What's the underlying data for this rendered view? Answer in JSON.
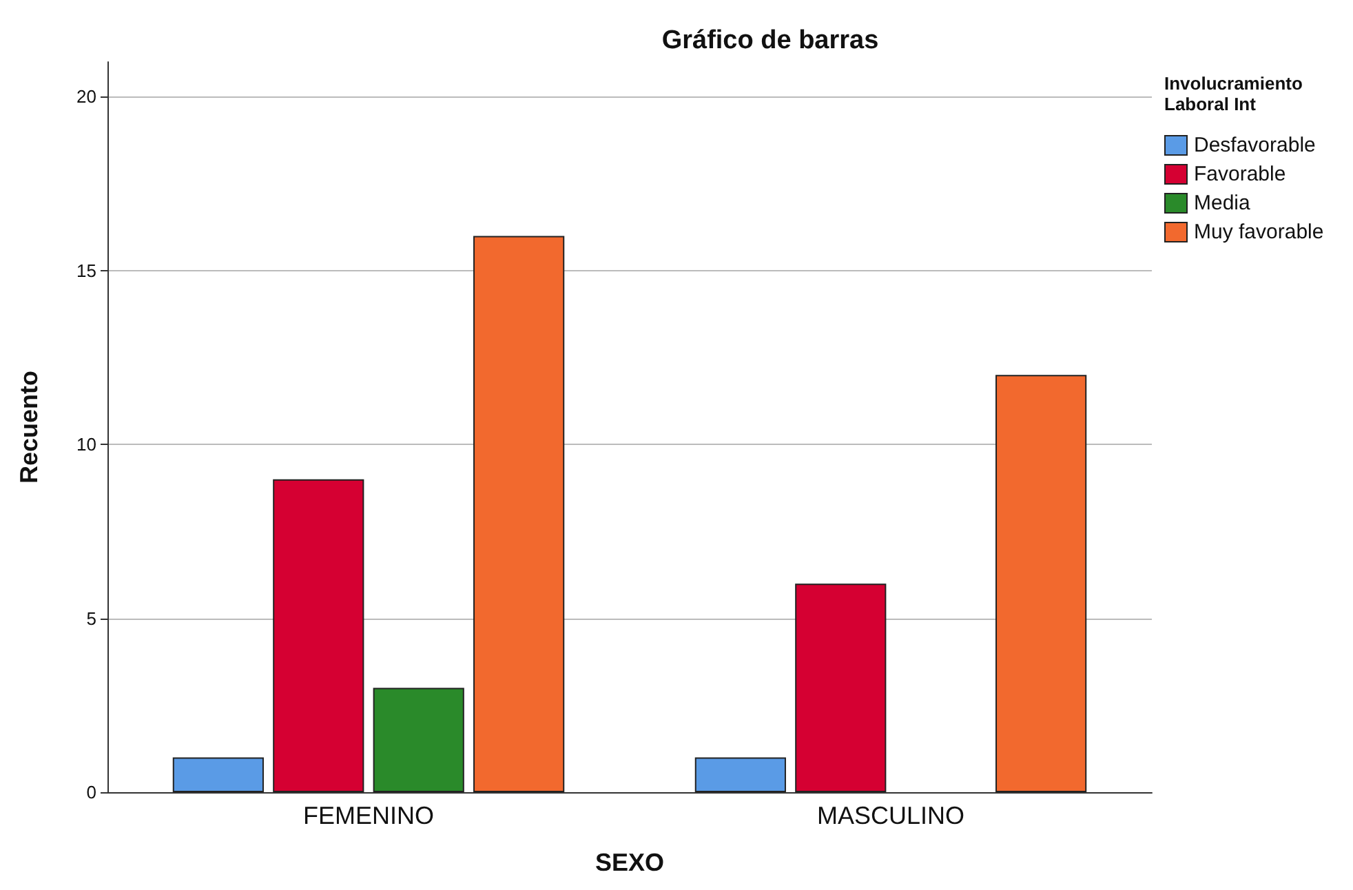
{
  "chart_data": {
    "type": "bar",
    "title": "Gráfico de barras",
    "xlabel": "SEXO",
    "ylabel": "Recuento",
    "legend_title": "Involucramiento Laboral Int",
    "categories": [
      "FEMENINO",
      "MASCULINO"
    ],
    "series": [
      {
        "name": "Desfavorable",
        "color": "#5a9be6",
        "values": [
          1,
          1
        ]
      },
      {
        "name": "Favorable",
        "color": "#d50032",
        "values": [
          9,
          6
        ]
      },
      {
        "name": "Media",
        "color": "#2a8a2a",
        "values": [
          3,
          null
        ]
      },
      {
        "name": "Muy favorable",
        "color": "#f2692e",
        "values": [
          16,
          12
        ]
      }
    ],
    "ylim": [
      0,
      21
    ],
    "yticks": [
      0,
      5,
      10,
      15,
      20
    ],
    "grid": "y",
    "legend": "top right"
  }
}
